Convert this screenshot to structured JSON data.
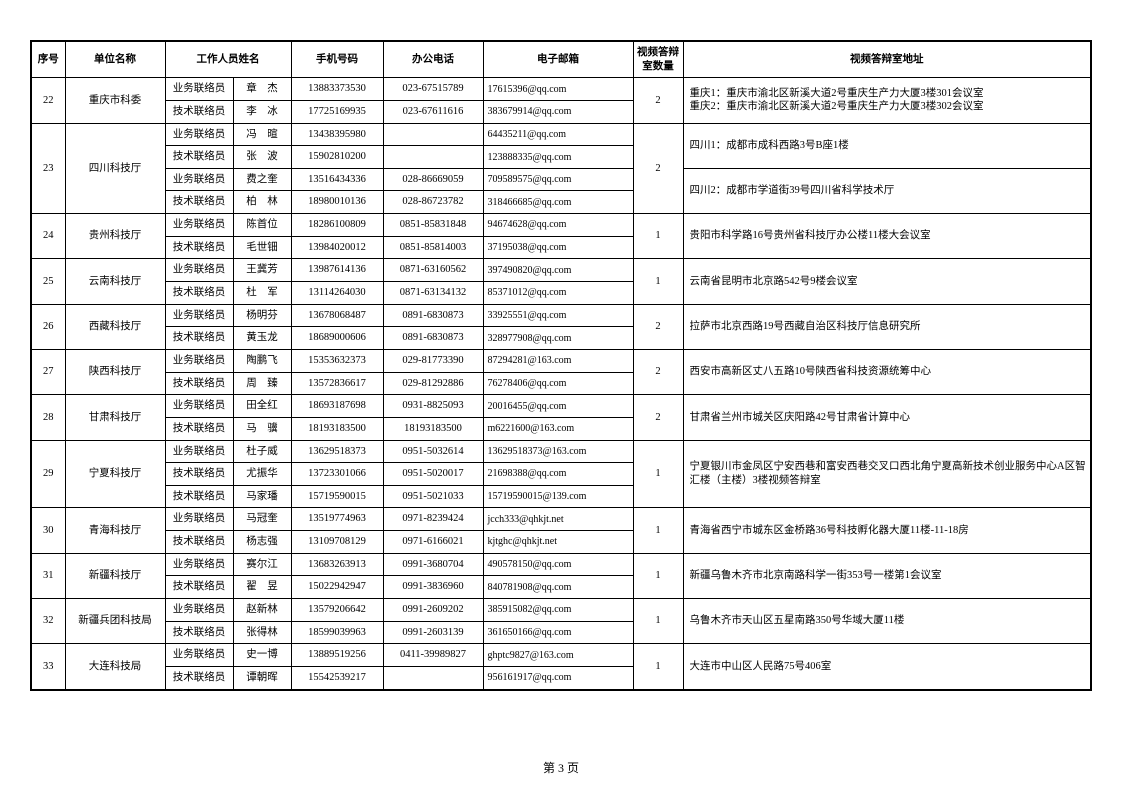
{
  "columns": [
    "序号",
    "单位名称",
    "工作人员姓名",
    "手机号码",
    "办公电话",
    "电子邮箱",
    "视频答辩室数量",
    "视频答辩室地址"
  ],
  "footer": "第 3 页",
  "groups": [
    {
      "seq": "22",
      "org": "重庆市科委",
      "rooms": "2",
      "addr": "重庆1：重庆市渝北区新溪大道2号重庆生产力大厦3楼301会议室\n重庆2：重庆市渝北区新溪大道2号重庆生产力大厦3楼302会议室",
      "staff": [
        {
          "role": "业务联络员",
          "name": "章　杰",
          "tel": "13883373530",
          "office": "023-67515789",
          "email": "17615396@qq.com"
        },
        {
          "role": "技术联络员",
          "name": "李　冰",
          "tel": "17725169935",
          "office": "023-67611616",
          "email": "383679914@qq.com"
        }
      ]
    },
    {
      "seq": "23",
      "org": "四川科技厅",
      "rooms": "2",
      "addrBlocks": [
        {
          "span": 2,
          "text": "四川1：成都市成科西路3号B座1楼"
        },
        {
          "span": 2,
          "text": "四川2：成都市学道街39号四川省科学技术厅"
        }
      ],
      "staff": [
        {
          "role": "业务联络员",
          "name": "冯　暄",
          "tel": "13438395980",
          "office": "",
          "email": "64435211@qq.com"
        },
        {
          "role": "技术联络员",
          "name": "张　波",
          "tel": "15902810200",
          "office": "",
          "email": "123888335@qq.com"
        },
        {
          "role": "业务联络员",
          "name": "费之奎",
          "tel": "13516434336",
          "office": "028-86669059",
          "email": "709589575@qq.com"
        },
        {
          "role": "技术联络员",
          "name": "柏　林",
          "tel": "18980010136",
          "office": "028-86723782",
          "email": "318466685@qq.com"
        }
      ]
    },
    {
      "seq": "24",
      "org": "贵州科技厅",
      "rooms": "1",
      "addr": "贵阳市科学路16号贵州省科技厅办公楼11楼大会议室",
      "staff": [
        {
          "role": "业务联络员",
          "name": "陈首位",
          "tel": "18286100809",
          "office": "0851-85831848",
          "email": "94674628@qq.com"
        },
        {
          "role": "技术联络员",
          "name": "毛世钿",
          "tel": "13984020012",
          "office": "0851-85814003",
          "email": "37195038@qq.com"
        }
      ]
    },
    {
      "seq": "25",
      "org": "云南科技厅",
      "rooms": "1",
      "addr": "云南省昆明市北京路542号9楼会议室",
      "staff": [
        {
          "role": "业务联络员",
          "name": "王冀芳",
          "tel": "13987614136",
          "office": "0871-63160562",
          "email": "397490820@qq.com"
        },
        {
          "role": "技术联络员",
          "name": "杜　军",
          "tel": "13114264030",
          "office": "0871-63134132",
          "email": "85371012@qq.com"
        }
      ]
    },
    {
      "seq": "26",
      "org": "西藏科技厅",
      "rooms": "2",
      "addr": "拉萨市北京西路19号西藏自治区科技厅信息研究所",
      "staff": [
        {
          "role": "业务联络员",
          "name": "杨明芬",
          "tel": "13678068487",
          "office": "0891-6830873",
          "email": "33925551@qq.com"
        },
        {
          "role": "技术联络员",
          "name": "黄玉龙",
          "tel": "18689000606",
          "office": "0891-6830873",
          "email": "328977908@qq.com"
        }
      ]
    },
    {
      "seq": "27",
      "org": "陕西科技厅",
      "rooms": "2",
      "addr": "西安市高新区丈八五路10号陕西省科技资源统筹中心",
      "staff": [
        {
          "role": "业务联络员",
          "name": "陶鹏飞",
          "tel": "15353632373",
          "office": "029-81773390",
          "email": "87294281@163.com"
        },
        {
          "role": "技术联络员",
          "name": "周　臻",
          "tel": "13572836617",
          "office": "029-81292886",
          "email": "76278406@qq.com"
        }
      ]
    },
    {
      "seq": "28",
      "org": "甘肃科技厅",
      "rooms": "2",
      "addr": "甘肃省兰州市城关区庆阳路42号甘肃省计算中心",
      "staff": [
        {
          "role": "业务联络员",
          "name": "田全红",
          "tel": "18693187698",
          "office": "0931-8825093",
          "email": "20016455@qq.com"
        },
        {
          "role": "技术联络员",
          "name": "马　骥",
          "tel": "18193183500",
          "office": "18193183500",
          "email": "m6221600@163.com"
        }
      ]
    },
    {
      "seq": "29",
      "org": "宁夏科技厅",
      "rooms": "1",
      "addr": "宁夏银川市金凤区宁安西巷和富安西巷交叉口西北角宁夏高新技术创业服务中心A区智汇楼（主楼）3楼视频答辩室",
      "staff": [
        {
          "role": "业务联络员",
          "name": "杜子威",
          "tel": "13629518373",
          "office": "0951-5032614",
          "email": "13629518373@163.com"
        },
        {
          "role": "技术联络员",
          "name": "尤振华",
          "tel": "13723301066",
          "office": "0951-5020017",
          "email": "21698388@qq.com"
        },
        {
          "role": "技术联络员",
          "name": "马家璠",
          "tel": "15719590015",
          "office": "0951-5021033",
          "email": "15719590015@139.com"
        }
      ]
    },
    {
      "seq": "30",
      "org": "青海科技厅",
      "rooms": "1",
      "addr": "青海省西宁市城东区金桥路36号科技孵化器大厦11楼-11-18房",
      "staff": [
        {
          "role": "业务联络员",
          "name": "马冠奎",
          "tel": "13519774963",
          "office": "0971-8239424",
          "email": "jcch333@qhkjt.net"
        },
        {
          "role": "技术联络员",
          "name": "杨志强",
          "tel": "13109708129",
          "office": "0971-6166021",
          "email": "kjtghc@qhkjt.net"
        }
      ]
    },
    {
      "seq": "31",
      "org": "新疆科技厅",
      "rooms": "1",
      "addr": "新疆乌鲁木齐市北京南路科学一街353号一楼第1会议室",
      "staff": [
        {
          "role": "业务联络员",
          "name": "赛尔江",
          "tel": "13683263913",
          "office": "0991-3680704",
          "email": "490578150@qq.com"
        },
        {
          "role": "技术联络员",
          "name": "翟　昱",
          "tel": "15022942947",
          "office": "0991-3836960",
          "email": "840781908@qq.com"
        }
      ]
    },
    {
      "seq": "32",
      "org": "新疆兵团科技局",
      "rooms": "1",
      "addr": "乌鲁木齐市天山区五星南路350号华域大厦11楼",
      "staff": [
        {
          "role": "业务联络员",
          "name": "赵新林",
          "tel": "13579206642",
          "office": "0991-2609202",
          "email": "385915082@qq.com"
        },
        {
          "role": "技术联络员",
          "name": "张得林",
          "tel": "18599039963",
          "office": "0991-2603139",
          "email": "361650166@qq.com"
        }
      ]
    },
    {
      "seq": "33",
      "org": "大连科技局",
      "rooms": "1",
      "addr": "大连市中山区人民路75号406室",
      "staff": [
        {
          "role": "业务联络员",
          "name": "史一博",
          "tel": "13889519256",
          "office": "0411-39989827",
          "email": "ghptc9827@163.com"
        },
        {
          "role": "技术联络员",
          "name": "谭朝晖",
          "tel": "15542539217",
          "office": "",
          "email": "956161917@qq.com"
        }
      ]
    }
  ]
}
